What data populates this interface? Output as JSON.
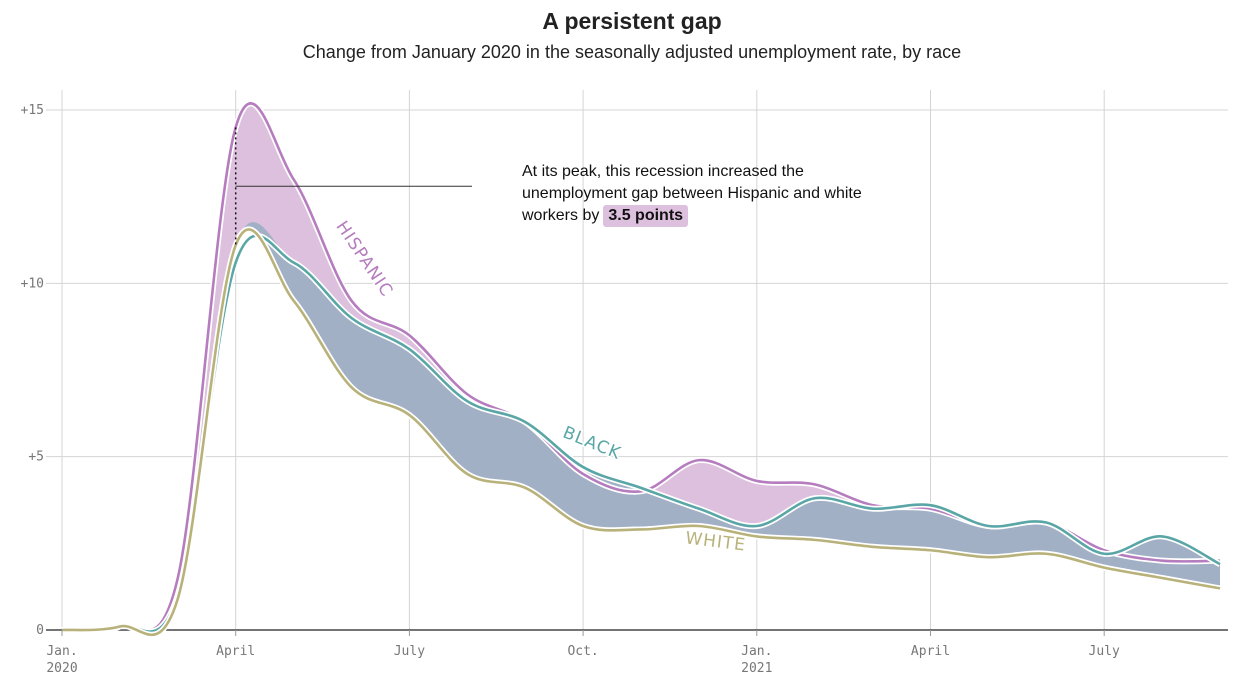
{
  "title": "A persistent gap",
  "subtitle": "Change from January 2020 in the seasonally adjusted unemployment rate, by race",
  "annotation": {
    "text": "At its peak, this recession increased the unemployment gap between Hispanic and white workers by",
    "highlight": "3.5 points"
  },
  "colors": {
    "hispanic": "#b57cbe",
    "black": "#5aa6a6",
    "white": "#b8b27a",
    "hispanic_fill": "#dcc0de",
    "black_fill": "#b7dcdb",
    "gap_fill": "#9eafc4",
    "grid": "#d4d4d4",
    "axis": "#222222"
  },
  "chart_data": {
    "type": "area",
    "x_unit": "month",
    "xlim": [
      "2020-01",
      "2021-09"
    ],
    "ylim": [
      0,
      15
    ],
    "grid": true,
    "y_ticks": [
      {
        "value": 0,
        "label": "0"
      },
      {
        "value": 5,
        "label": "+5"
      },
      {
        "value": 10,
        "label": "+10"
      },
      {
        "value": 15,
        "label": "+15"
      }
    ],
    "x_ticks": [
      {
        "month": "2020-01",
        "label": "Jan.",
        "sublabel": "2020"
      },
      {
        "month": "2020-04",
        "label": "April",
        "sublabel": ""
      },
      {
        "month": "2020-07",
        "label": "July",
        "sublabel": ""
      },
      {
        "month": "2020-10",
        "label": "Oct.",
        "sublabel": ""
      },
      {
        "month": "2021-01",
        "label": "Jan.",
        "sublabel": "2021"
      },
      {
        "month": "2021-04",
        "label": "April",
        "sublabel": ""
      },
      {
        "month": "2021-07",
        "label": "July",
        "sublabel": ""
      }
    ],
    "x": [
      "2020-01",
      "2020-02",
      "2020-03",
      "2020-04",
      "2020-05",
      "2020-06",
      "2020-07",
      "2020-08",
      "2020-09",
      "2020-10",
      "2020-11",
      "2020-12",
      "2021-01",
      "2021-02",
      "2021-03",
      "2021-04",
      "2021-05",
      "2021-06",
      "2021-07",
      "2021-08",
      "2021-09"
    ],
    "series": [
      {
        "name": "HISPANIC",
        "key": "hispanic",
        "values": [
          0,
          0.1,
          1.5,
          14.5,
          13.0,
          9.5,
          8.5,
          6.8,
          6.0,
          4.5,
          4.0,
          4.9,
          4.3,
          4.2,
          3.6,
          3.5,
          3.0,
          3.1,
          2.3,
          2.0,
          2.0
        ]
      },
      {
        "name": "BLACK",
        "key": "black",
        "values": [
          0,
          0.1,
          1.0,
          10.6,
          10.6,
          9.0,
          8.1,
          6.6,
          6.0,
          4.7,
          4.1,
          3.5,
          3.0,
          3.8,
          3.5,
          3.6,
          3.0,
          3.1,
          2.2,
          2.7,
          1.9
        ]
      },
      {
        "name": "WHITE",
        "key": "white",
        "values": [
          0,
          0.1,
          0.9,
          11.1,
          9.5,
          7.0,
          6.2,
          4.5,
          4.1,
          3.0,
          2.9,
          3.0,
          2.7,
          2.6,
          2.4,
          2.3,
          2.1,
          2.2,
          1.8,
          1.5,
          1.2
        ]
      }
    ],
    "peak_gap": {
      "month": "2020-04",
      "value": 3.5
    }
  }
}
